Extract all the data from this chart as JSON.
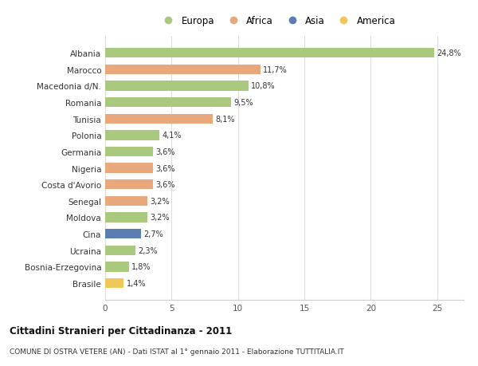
{
  "countries": [
    "Albania",
    "Marocco",
    "Macedonia d/N.",
    "Romania",
    "Tunisia",
    "Polonia",
    "Germania",
    "Nigeria",
    "Costa d'Avorio",
    "Senegal",
    "Moldova",
    "Cina",
    "Ucraina",
    "Bosnia-Erzegovina",
    "Brasile"
  ],
  "values": [
    24.8,
    11.7,
    10.8,
    9.5,
    8.1,
    4.1,
    3.6,
    3.6,
    3.6,
    3.2,
    3.2,
    2.7,
    2.3,
    1.8,
    1.4
  ],
  "labels": [
    "24,8%",
    "11,7%",
    "10,8%",
    "9,5%",
    "8,1%",
    "4,1%",
    "3,6%",
    "3,6%",
    "3,6%",
    "3,2%",
    "3,2%",
    "2,7%",
    "2,3%",
    "1,8%",
    "1,4%"
  ],
  "continents": [
    "Europa",
    "Africa",
    "Europa",
    "Europa",
    "Africa",
    "Europa",
    "Europa",
    "Africa",
    "Africa",
    "Africa",
    "Europa",
    "Asia",
    "Europa",
    "Europa",
    "America"
  ],
  "colors": {
    "Europa": "#aac97f",
    "Africa": "#e8a87c",
    "Asia": "#5b7db1",
    "America": "#f0c85a"
  },
  "legend_order": [
    "Europa",
    "Africa",
    "Asia",
    "America"
  ],
  "title1": "Cittadini Stranieri per Cittadinanza - 2011",
  "title2": "COMUNE DI OSTRA VETERE (AN) - Dati ISTAT al 1° gennaio 2011 - Elaborazione TUTTITALIA.IT",
  "xlim": [
    0,
    27
  ],
  "xticks": [
    0,
    5,
    10,
    15,
    20,
    25
  ],
  "background_color": "#ffffff",
  "bar_height": 0.6
}
